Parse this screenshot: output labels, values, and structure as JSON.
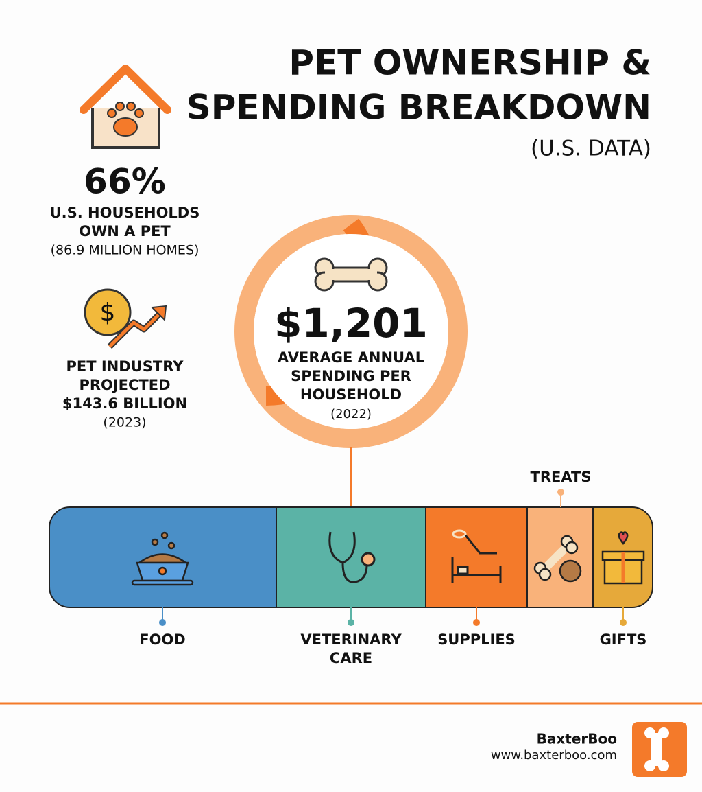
{
  "header": {
    "title_lines": [
      "PET OWNERSHIP &",
      "SPENDING BREAKDOWN"
    ],
    "subtitle": "(U.S. DATA)"
  },
  "ownership": {
    "value": "66%",
    "label_lines": [
      "U.S. HOUSEHOLDS",
      "OWN A PET"
    ],
    "note": "(86.9 MILLION HOMES)"
  },
  "industry": {
    "label_lines": [
      "PET INDUSTRY",
      "PROJECTED",
      "$143.6 BILLION"
    ],
    "note": "(2023)"
  },
  "spending": {
    "value": "$1,201",
    "label_lines": [
      "AVERAGE ANNUAL",
      "SPENDING PER",
      "HOUSEHOLD"
    ],
    "note": "(2022)"
  },
  "breakdown": {
    "segments": [
      {
        "label_lines": [
          "FOOD"
        ]
      },
      {
        "label_lines": [
          "VETERINARY",
          "CARE"
        ]
      },
      {
        "label_lines": [
          "SUPPLIES"
        ]
      },
      {
        "label_lines": [
          "TREATS"
        ]
      },
      {
        "label_lines": [
          "GIFTS"
        ]
      }
    ]
  },
  "footer": {
    "brand": "BaxterBoo",
    "url": "www.baxterboo.com"
  }
}
